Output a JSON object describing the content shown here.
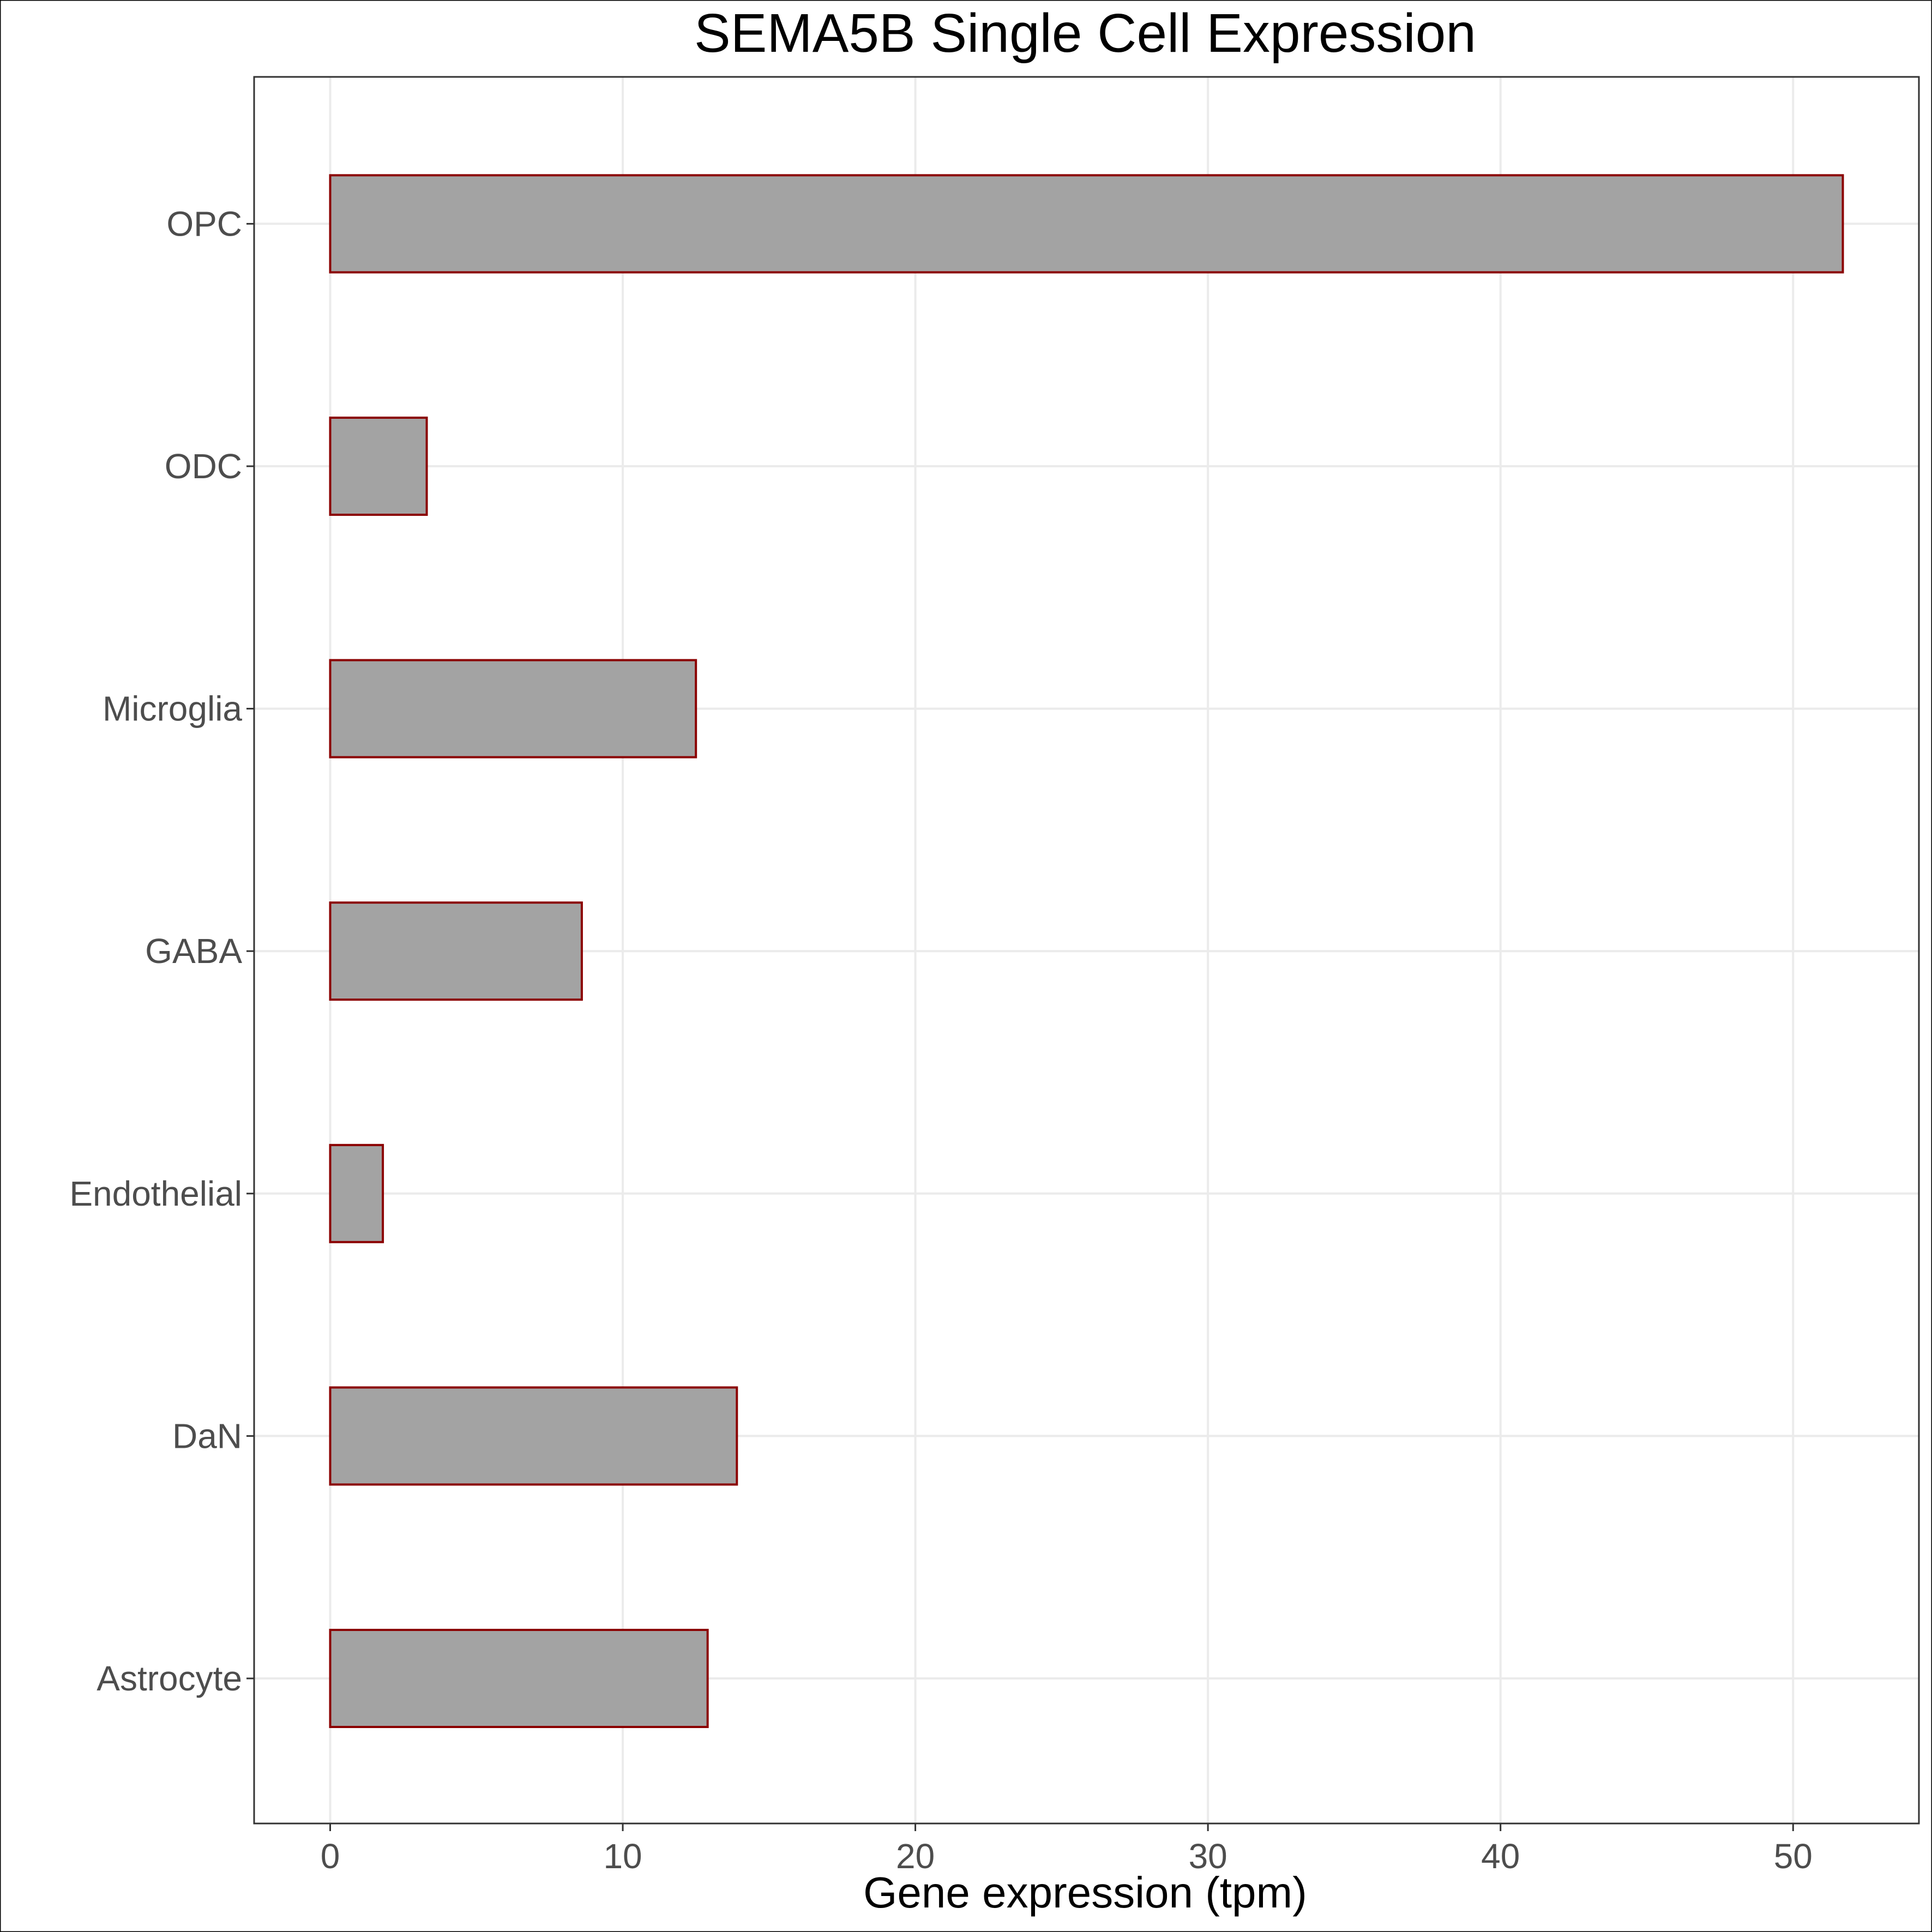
{
  "chart_data": {
    "type": "bar",
    "orientation": "horizontal",
    "title": "SEMA5B Single Cell Expression",
    "xlabel": "Gene expression (tpm)",
    "ylabel": "",
    "categories": [
      "Astrocyte",
      "DaN",
      "Endothelial",
      "GABA",
      "Microglia",
      "ODC",
      "OPC"
    ],
    "values": [
      12.9,
      13.9,
      1.8,
      8.6,
      12.5,
      3.3,
      51.7
    ],
    "xlim": [
      -2.6,
      54.3
    ],
    "xticks": [
      0,
      10,
      20,
      30,
      40,
      50
    ],
    "grid": true,
    "colors": {
      "bar_fill": "#a3a3a3",
      "bar_stroke": "#8b0000",
      "grid": "#ebebeb",
      "panel_border": "#333333"
    }
  }
}
